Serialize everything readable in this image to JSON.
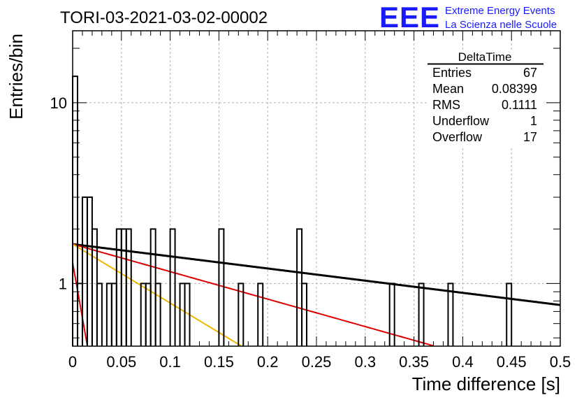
{
  "header": {
    "run_title": "TORI-03-2021-03-02-00002",
    "logo_text": "EEE",
    "brand_line1": "Extreme Energy Events",
    "brand_line2": "La Scienza nelle Scuole"
  },
  "stats": {
    "title": "DeltaTime",
    "rows": [
      {
        "label": "Entries",
        "value": "67"
      },
      {
        "label": "Mean",
        "value": "0.08399"
      },
      {
        "label": "RMS",
        "value": "0.1111"
      },
      {
        "label": "Underflow",
        "value": "1"
      },
      {
        "label": "Overflow",
        "value": "17"
      }
    ]
  },
  "chart_data": {
    "type": "histogram",
    "xlabel": "Time difference [s]",
    "ylabel": "Entries/bin",
    "xlim": [
      0,
      0.5
    ],
    "ylim": [
      0.45,
      25
    ],
    "yscale": "log",
    "grid": true,
    "x_ticks": [
      {
        "value": 0,
        "label": "0"
      },
      {
        "value": 0.05,
        "label": "0.05"
      },
      {
        "value": 0.1,
        "label": "0.1"
      },
      {
        "value": 0.15,
        "label": "0.15"
      },
      {
        "value": 0.2,
        "label": "0.2"
      },
      {
        "value": 0.25,
        "label": "0.25"
      },
      {
        "value": 0.3,
        "label": "0.3"
      },
      {
        "value": 0.35,
        "label": "0.35"
      },
      {
        "value": 0.4,
        "label": "0.4"
      },
      {
        "value": 0.45,
        "label": "0.45"
      },
      {
        "value": 0.5,
        "label": "0.5"
      }
    ],
    "y_ticks": [
      {
        "value": 1,
        "label": "1"
      },
      {
        "value": 10,
        "label": "10"
      }
    ],
    "bin_width": 0.005,
    "bins": [
      {
        "x": 0.0,
        "count": 14
      },
      {
        "x": 0.005,
        "count": 1
      },
      {
        "x": 0.01,
        "count": 3
      },
      {
        "x": 0.015,
        "count": 3
      },
      {
        "x": 0.02,
        "count": 2
      },
      {
        "x": 0.025,
        "count": 1
      },
      {
        "x": 0.035,
        "count": 1
      },
      {
        "x": 0.04,
        "count": 1
      },
      {
        "x": 0.045,
        "count": 2
      },
      {
        "x": 0.05,
        "count": 2
      },
      {
        "x": 0.055,
        "count": 2
      },
      {
        "x": 0.07,
        "count": 1
      },
      {
        "x": 0.075,
        "count": 1
      },
      {
        "x": 0.08,
        "count": 2
      },
      {
        "x": 0.085,
        "count": 1
      },
      {
        "x": 0.1,
        "count": 2
      },
      {
        "x": 0.11,
        "count": 1
      },
      {
        "x": 0.115,
        "count": 1
      },
      {
        "x": 0.15,
        "count": 2
      },
      {
        "x": 0.17,
        "count": 1
      },
      {
        "x": 0.19,
        "count": 1
      },
      {
        "x": 0.23,
        "count": 2
      },
      {
        "x": 0.235,
        "count": 1
      },
      {
        "x": 0.325,
        "count": 1
      },
      {
        "x": 0.355,
        "count": 1
      },
      {
        "x": 0.385,
        "count": 1
      },
      {
        "x": 0.445,
        "count": 1
      }
    ],
    "fit_curves": [
      {
        "color": "#000000",
        "amplitude": 1.65,
        "rate": 1.55
      },
      {
        "color": "#dd0000",
        "amplitude": 1.65,
        "rate": 3.5
      },
      {
        "color": "#f2b800",
        "amplitude": 1.65,
        "rate": 7.5
      },
      {
        "color": "#dd0000",
        "amplitude": 1.3,
        "rate": 70
      }
    ]
  },
  "colors": {
    "brand": "#1a1aff",
    "histogram": "#000000",
    "grid": "#b0b0b0"
  }
}
